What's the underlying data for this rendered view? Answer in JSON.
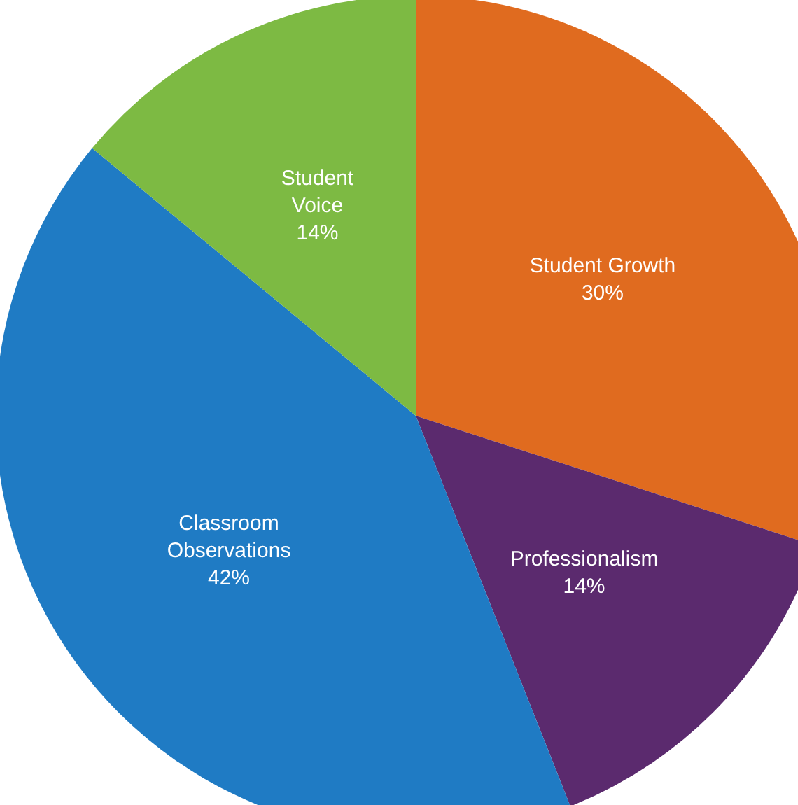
{
  "chart_data": {
    "type": "pie",
    "categories": [
      "Student Growth",
      "Professionalism",
      "Classroom Observations",
      "Student Voice"
    ],
    "values": [
      30,
      14,
      42,
      14
    ],
    "colors": [
      "#e06b1f",
      "#5b2a6e",
      "#1f7bc4",
      "#7dba43"
    ],
    "value_labels": [
      "30%",
      "14%",
      "42%",
      "14%"
    ]
  }
}
